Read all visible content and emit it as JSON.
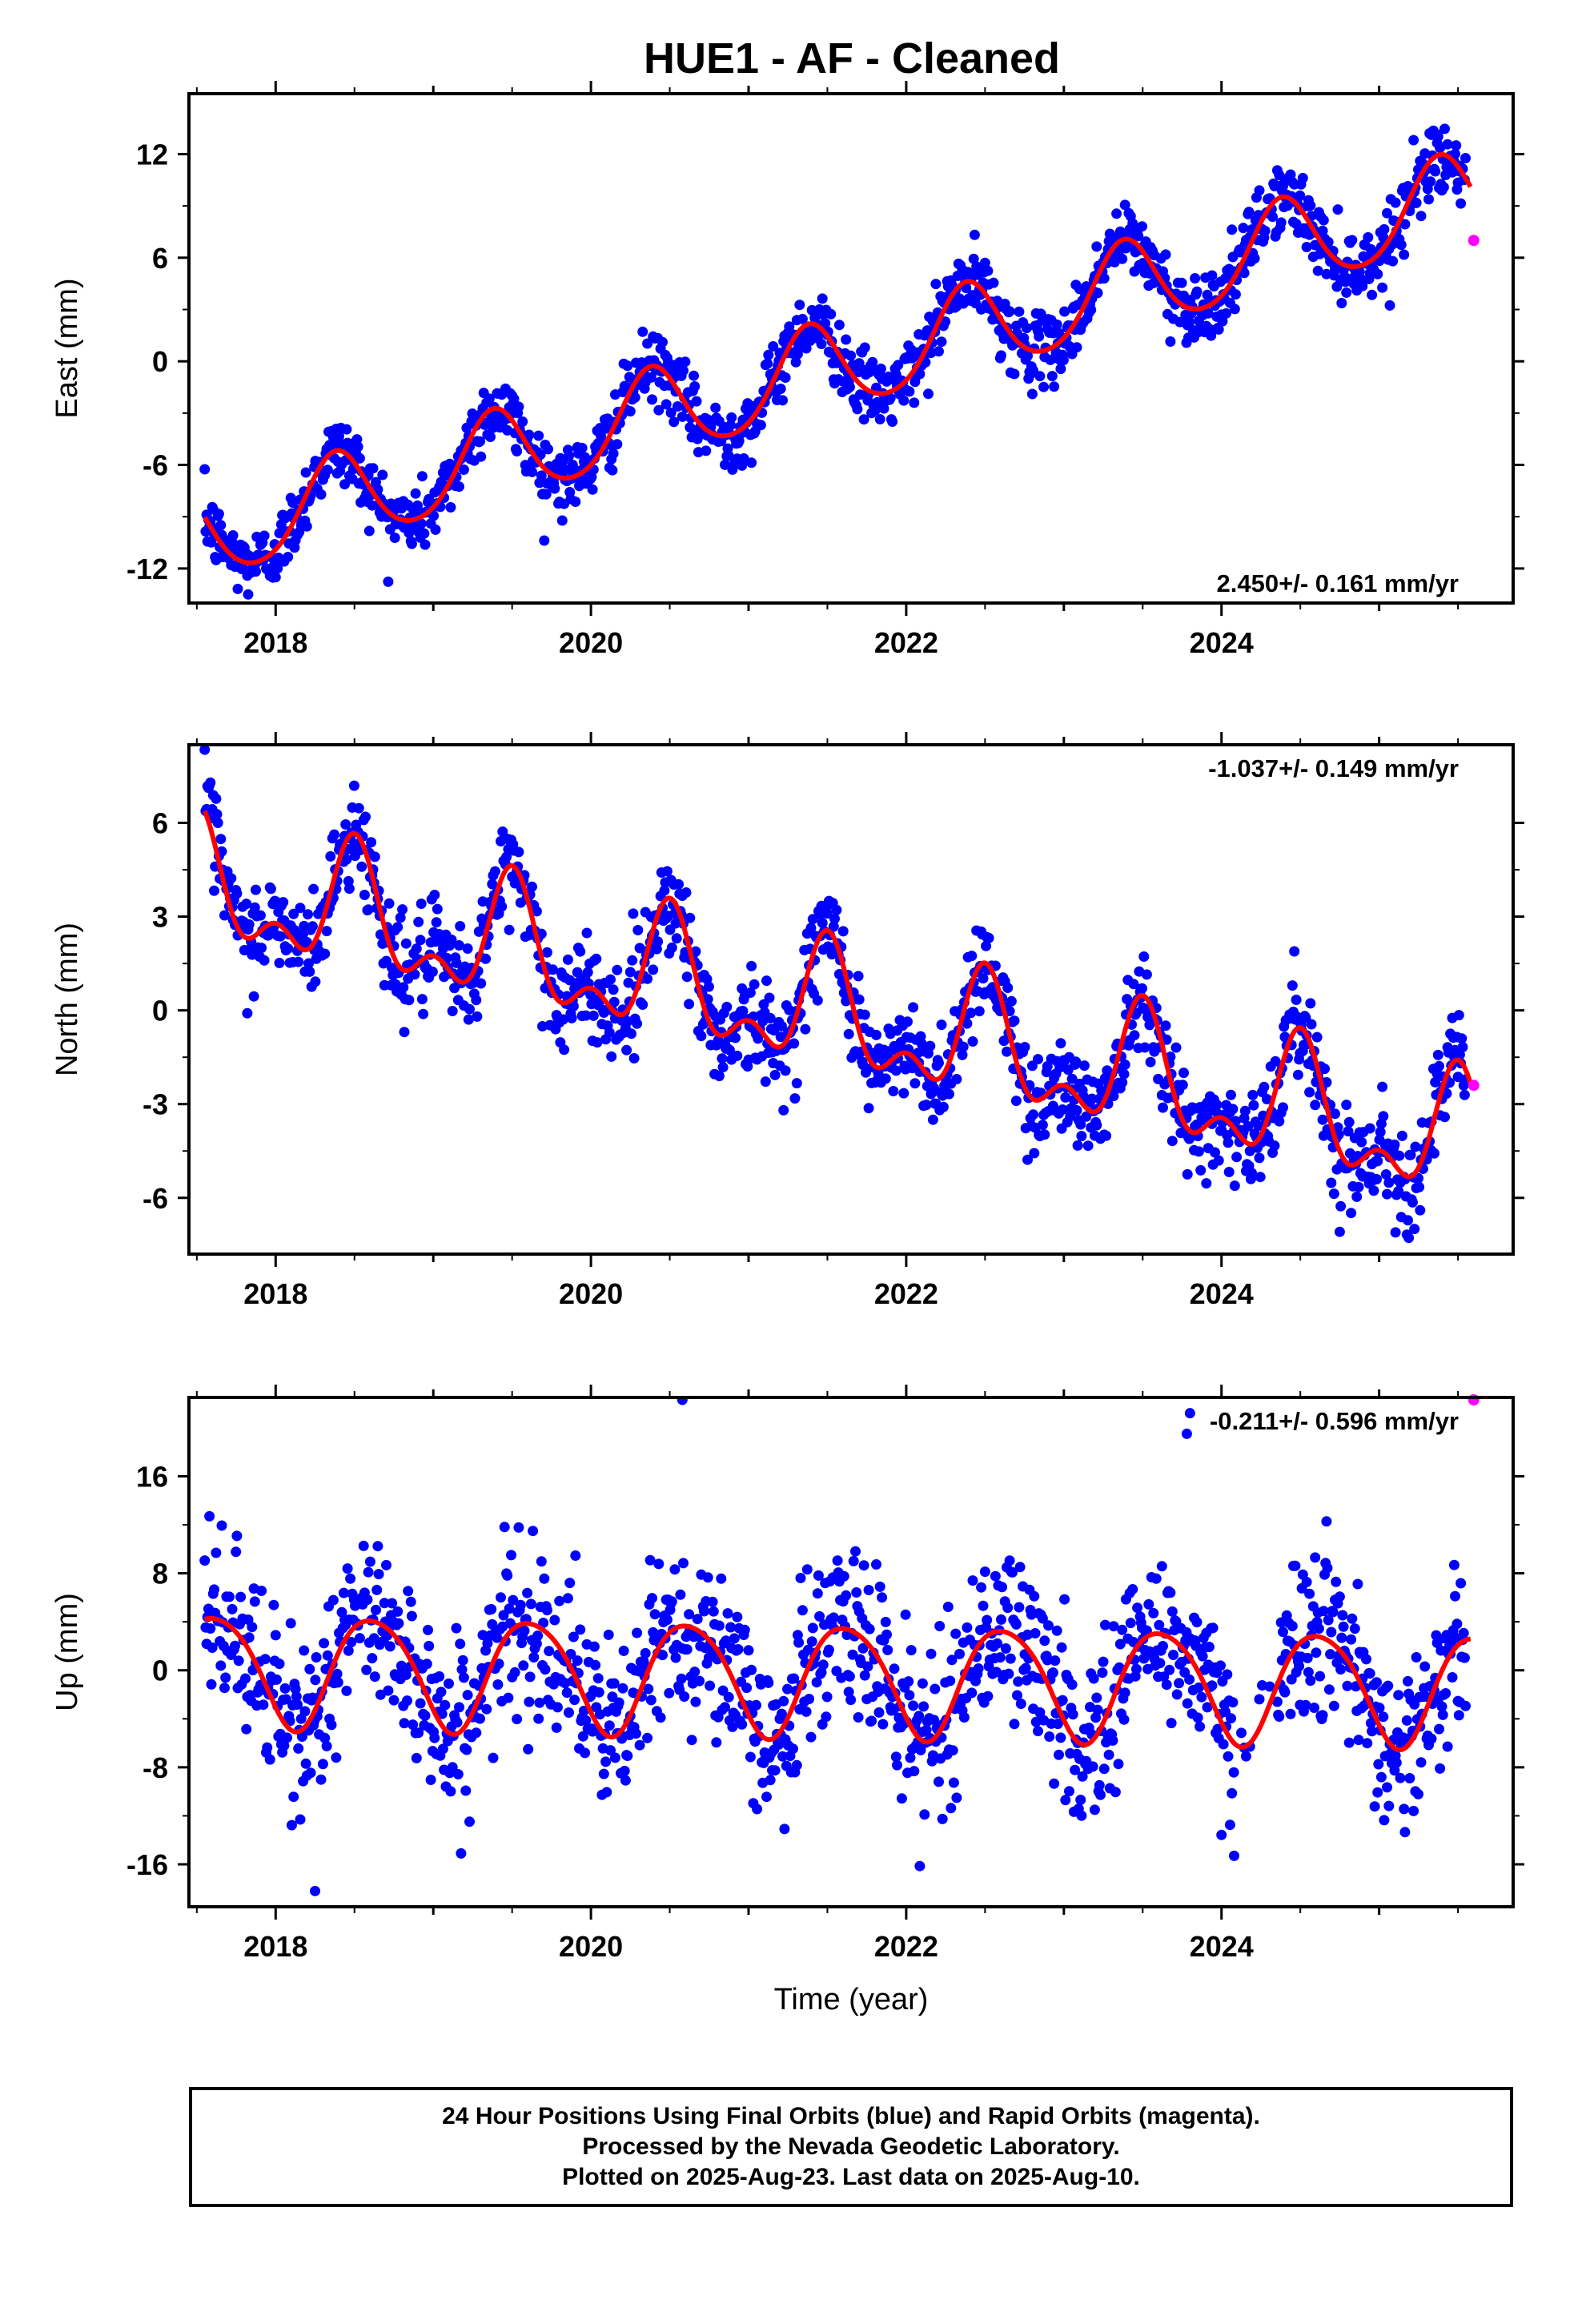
{
  "title": "HUE1  - AF - Cleaned",
  "footer": {
    "line1": "24 Hour Positions Using Final Orbits (blue) and Rapid Orbits (magenta).",
    "line2": "Processed by the Nevada Geodetic Laboratory.",
    "line3": "Plotted on 2025-Aug-23. Last data on 2025-Aug-10."
  },
  "colors": {
    "final_orbits": "#0000ff",
    "rapid_orbits": "#ff00ff",
    "model_fit": "#ff0000"
  },
  "chart_data": [
    {
      "type": "scatter",
      "id": "east",
      "ylabel": "East (mm)",
      "xlabel": "",
      "xlim": [
        2017.45,
        2025.85
      ],
      "ylim": [
        -14,
        15.5
      ],
      "xticks": [
        2018,
        2020,
        2022,
        2024
      ],
      "yticks": [
        -12,
        -6,
        0,
        6,
        12
      ],
      "rate_label": "2.450+/- 0.161 mm/yr",
      "rate_position": "bottom-right",
      "series": [
        {
          "kind": "final-orbits-points",
          "color": "#0000ff",
          "model": {
            "t0": 2017.6,
            "offset": -10.0,
            "rate": 2.45,
            "annual_amp": 2.6,
            "annual_phase": 2018.38,
            "semi_amp": 0.3,
            "scatter": 1.0
          },
          "x_range": [
            2017.55,
            2025.55
          ],
          "step": 0.006
        },
        {
          "kind": "rapid-orbits-points",
          "color": "#ff00ff",
          "x": [
            2025.6
          ],
          "y": [
            7.0
          ]
        },
        {
          "kind": "model-fit-line",
          "color": "#ff0000",
          "x_range": [
            2017.55,
            2025.58
          ]
        }
      ]
    },
    {
      "type": "scatter",
      "id": "north",
      "ylabel": "North (mm)",
      "xlabel": "",
      "xlim": [
        2017.45,
        2025.85
      ],
      "ylim": [
        -7.8,
        8.5
      ],
      "xticks": [
        2018,
        2020,
        2022,
        2024
      ],
      "yticks": [
        -6,
        -3,
        0,
        3,
        6
      ],
      "rate_label": "-1.037+/- 0.149 mm/yr",
      "rate_position": "top-right",
      "series": [
        {
          "kind": "final-orbits-points",
          "color": "#0000ff",
          "model": {
            "t0": 2017.6,
            "offset": 3.9,
            "rate": -1.037,
            "annual_amp": 1.7,
            "annual_phase": 2018.5,
            "semi_amp": 1.0,
            "semi_phase": 2018.5,
            "scatter": 0.8
          },
          "x_range": [
            2017.55,
            2025.55
          ],
          "step": 0.006
        },
        {
          "kind": "rapid-orbits-points",
          "color": "#ff00ff",
          "x": [
            2025.6
          ],
          "y": [
            -2.4
          ]
        },
        {
          "kind": "model-fit-line",
          "color": "#ff0000",
          "x_range": [
            2017.55,
            2025.58
          ]
        }
      ]
    },
    {
      "type": "scatter",
      "id": "up",
      "ylabel": "Up (mm)",
      "xlabel": "Time (year)",
      "xlim": [
        2017.45,
        2025.85
      ],
      "ylim": [
        -19.5,
        22.5
      ],
      "xticks": [
        2018,
        2020,
        2022,
        2024
      ],
      "yticks": [
        -16,
        -8,
        0,
        8,
        16
      ],
      "rate_label": "-0.211+/- 0.596 mm/yr",
      "rate_position": "top-right",
      "series": [
        {
          "kind": "final-orbits-points",
          "color": "#0000ff",
          "model": {
            "t0": 2017.6,
            "offset": 0.2,
            "rate": -0.211,
            "annual_amp": 4.6,
            "annual_phase": 2018.62,
            "semi_amp": 0.6,
            "semi_phase": 2018.4,
            "scatter": 3.5
          },
          "x_range": [
            2017.55,
            2025.55
          ],
          "step": 0.006
        },
        {
          "kind": "rapid-orbits-points",
          "color": "#ff00ff",
          "x": [
            2025.6
          ],
          "y": [
            22.3
          ]
        },
        {
          "kind": "model-fit-line",
          "color": "#ff0000",
          "x_range": [
            2017.55,
            2025.58
          ]
        }
      ]
    }
  ]
}
